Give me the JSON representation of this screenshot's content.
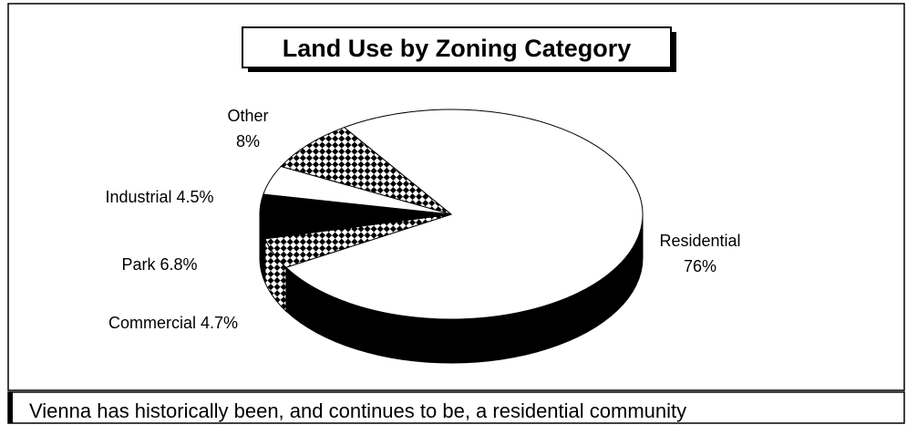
{
  "chart_data": {
    "type": "pie3d",
    "title": "Land Use by Zoning Category",
    "categories": [
      "Residential",
      "Commercial",
      "Park",
      "Industrial",
      "Other"
    ],
    "values": [
      76,
      4.7,
      6.8,
      4.5,
      8
    ],
    "value_labels": [
      "76%",
      "4.7%",
      "6.8%",
      "4.5%",
      "8%"
    ],
    "fills": [
      "white",
      "checker",
      "black",
      "white",
      "checker"
    ],
    "caption": "Vienna has historically been, and continues to be, a residential community"
  }
}
